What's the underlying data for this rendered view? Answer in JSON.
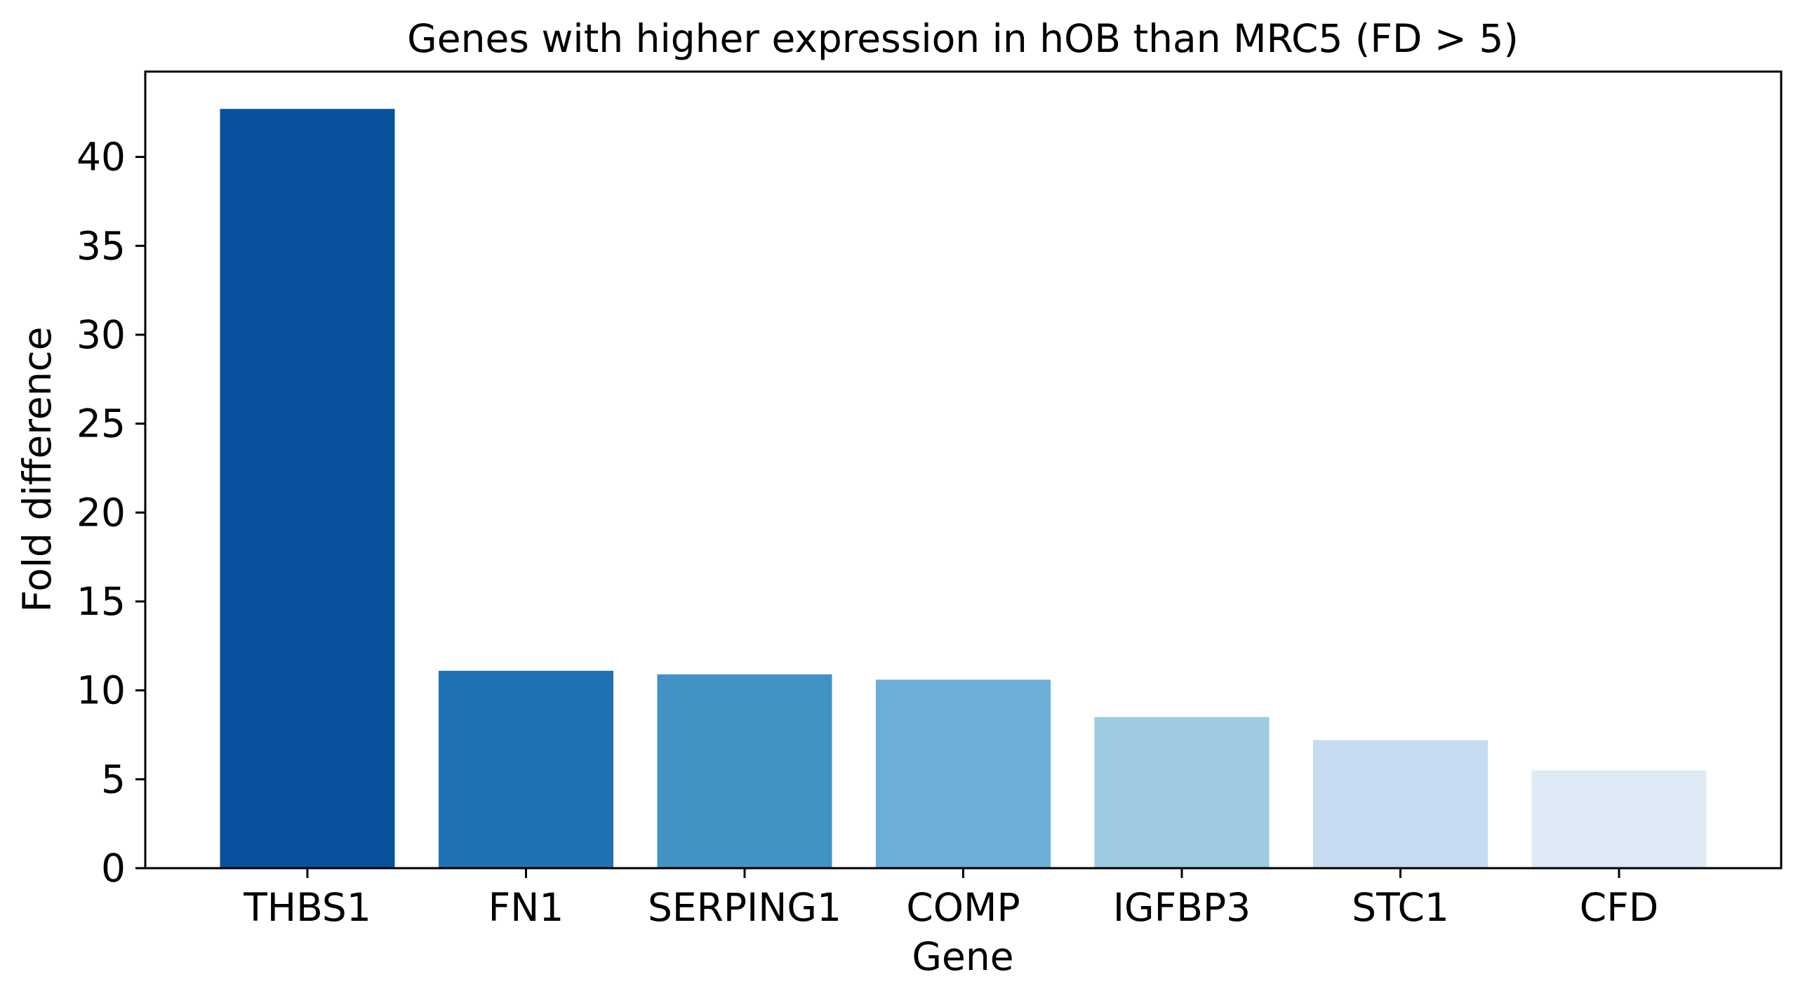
{
  "chart_data": {
    "type": "bar",
    "title": "Genes with higher expression in hOB than MRC5 (FD > 5)",
    "xlabel": "Gene",
    "ylabel": "Fold difference",
    "categories": [
      "THBS1",
      "FN1",
      "SERPING1",
      "COMP",
      "IGFBP3",
      "STC1",
      "CFD"
    ],
    "values": [
      42.7,
      11.1,
      10.9,
      10.6,
      8.5,
      7.2,
      5.5
    ],
    "bar_colors": [
      "#08519c",
      "#2171b5",
      "#4292c6",
      "#6baed6",
      "#9ecae1",
      "#c6dbef",
      "#deebf7"
    ],
    "ylim": [
      0,
      44.8
    ],
    "yticks": [
      0,
      5,
      10,
      15,
      20,
      25,
      30,
      35,
      40
    ],
    "grid": false,
    "legend": "none"
  }
}
